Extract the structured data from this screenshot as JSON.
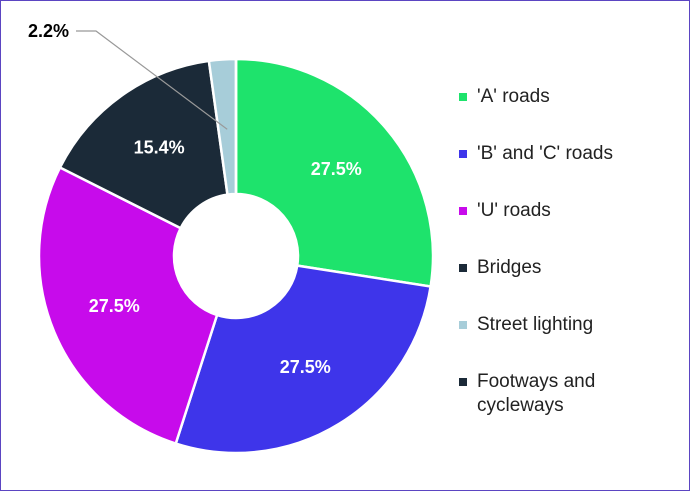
{
  "chart_data": {
    "type": "donut",
    "categories": [
      "'A' roads",
      "'B' and 'C' roads",
      "'U' roads",
      "Bridges",
      "Street lighting",
      "Footways and cycleways"
    ],
    "values": [
      27.5,
      27.5,
      27.5,
      15.4,
      2.2,
      0
    ],
    "value_labels": [
      "27.5%",
      "27.5%",
      "27.5%",
      "15.4%",
      "2.2%",
      null
    ],
    "colors": [
      "#1ee36c",
      "#3e35ea",
      "#c70beb",
      "#1b2a38",
      "#a7cdd9",
      "#1b2a38"
    ],
    "legend": "right"
  }
}
